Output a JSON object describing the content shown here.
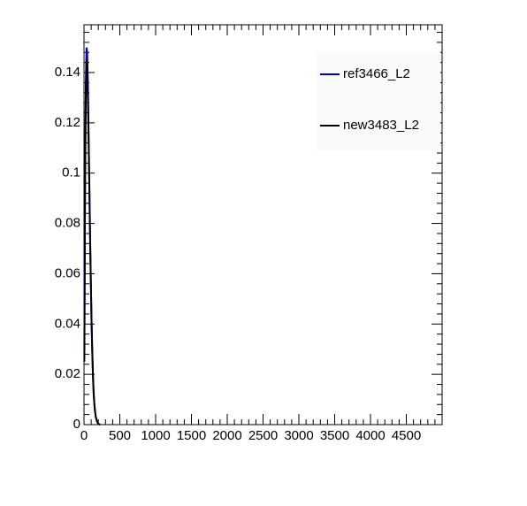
{
  "chart_data": {
    "type": "line",
    "x": [
      5,
      15,
      25,
      35,
      45,
      55,
      65,
      75,
      85,
      95,
      105,
      115,
      125,
      135,
      145,
      155,
      165,
      175,
      185,
      195,
      205,
      215,
      225
    ],
    "series": [
      {
        "name": "ref3466_L2",
        "color": "#0000cc",
        "values": [
          0.03,
          0.1,
          0.135,
          0.15,
          0.148,
          0.135,
          0.115,
          0.095,
          0.075,
          0.058,
          0.042,
          0.03,
          0.02,
          0.013,
          0.008,
          0.005,
          0.003,
          0.002,
          0.001,
          0.0006,
          0.0003,
          0.0001,
          0
        ]
      },
      {
        "name": "new3483_L2",
        "color": "#000000",
        "values": [
          0.025,
          0.095,
          0.13,
          0.145,
          0.14,
          0.128,
          0.112,
          0.093,
          0.074,
          0.057,
          0.041,
          0.029,
          0.019,
          0.012,
          0.008,
          0.005,
          0.003,
          0.002,
          0.001,
          0.0005,
          0.0002,
          0.0001,
          0
        ]
      }
    ],
    "xlim": [
      0,
      5000
    ],
    "xticks": [
      0,
      500,
      1000,
      1500,
      2000,
      2500,
      3000,
      3500,
      4000,
      4500
    ],
    "ylim": [
      0,
      0.159
    ],
    "yticks": [
      0,
      0.02,
      0.04,
      0.06,
      0.08,
      0.1,
      0.12,
      0.14
    ],
    "legend": "top-right"
  }
}
